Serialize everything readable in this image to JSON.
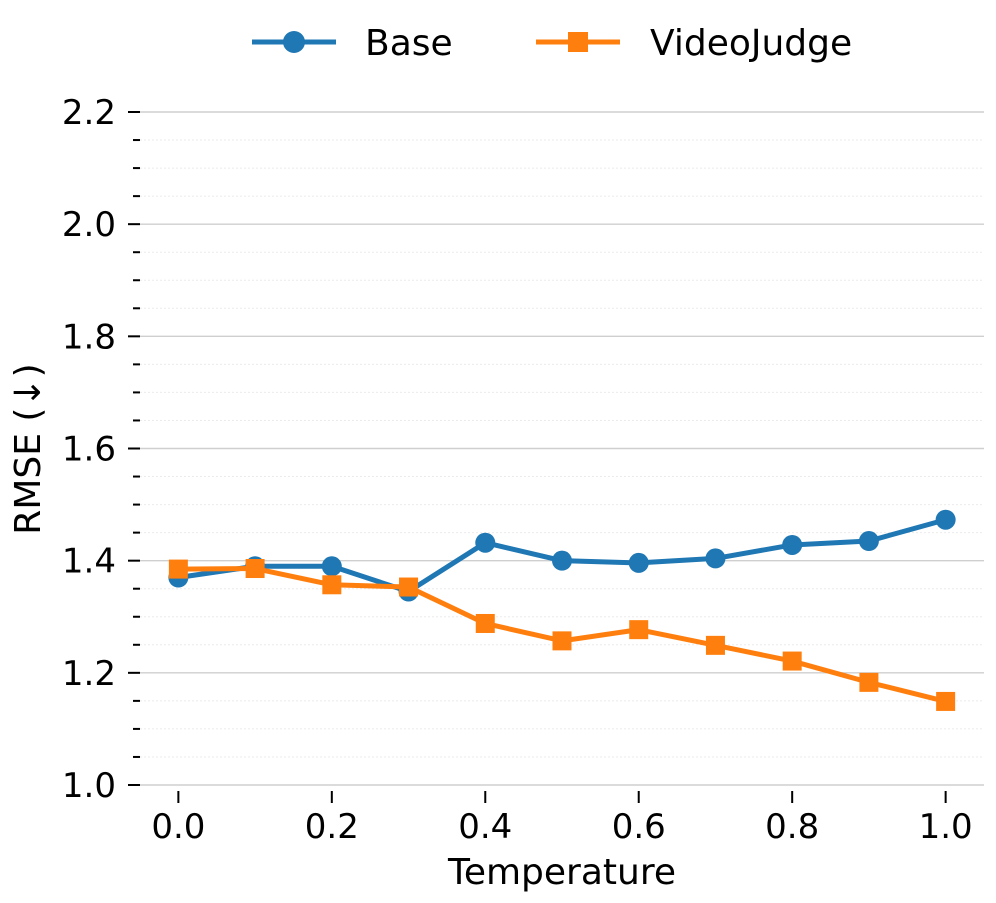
{
  "chart_data": {
    "type": "line",
    "title": "",
    "xlabel": "Temperature",
    "ylabel": "RMSE (↓)",
    "x": [
      0.0,
      0.1,
      0.2,
      0.3,
      0.4,
      0.5,
      0.6,
      0.7,
      0.8,
      0.9,
      1.0
    ],
    "xlim": [
      -0.05,
      1.05
    ],
    "ylim": [
      1.0,
      2.2
    ],
    "x_ticks": [
      "0.0",
      "0.2",
      "0.4",
      "0.6",
      "0.8",
      "1.0"
    ],
    "x_tick_values": [
      0.0,
      0.2,
      0.4,
      0.6,
      0.8,
      1.0
    ],
    "y_ticks": [
      "1.0",
      "1.2",
      "1.4",
      "1.6",
      "1.8",
      "2.0",
      "2.2"
    ],
    "y_tick_values": [
      1.0,
      1.2,
      1.4,
      1.6,
      1.8,
      2.0,
      2.2
    ],
    "grid": true,
    "legend_position": "top-center",
    "series": [
      {
        "name": "Base",
        "color": "#1f77b4",
        "marker": "circle",
        "values": [
          1.37,
          1.39,
          1.39,
          1.345,
          1.432,
          1.4,
          1.396,
          1.404,
          1.428,
          1.435,
          1.473
        ]
      },
      {
        "name": "VideoJudge",
        "color": "#ff7f0e",
        "marker": "square",
        "values": [
          1.385,
          1.386,
          1.357,
          1.353,
          1.288,
          1.257,
          1.277,
          1.249,
          1.221,
          1.183,
          1.149
        ]
      }
    ]
  }
}
